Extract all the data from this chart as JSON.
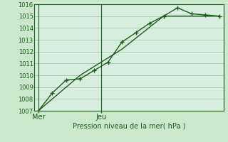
{
  "bg_color": "#cce8cc",
  "plot_bg_color": "#d8eede",
  "grid_color": "#b0c8b0",
  "line1_color": "#1a5c1a",
  "line2_color": "#1a5c1a",
  "title": "Pression niveau de la mer( hPa )",
  "xlabel_mer": "Mer",
  "xlabel_jeu": "Jeu",
  "ylim": [
    1007,
    1016
  ],
  "yticks": [
    1007,
    1008,
    1009,
    1010,
    1011,
    1012,
    1013,
    1014,
    1015,
    1016
  ],
  "line1_x": [
    0,
    1,
    2,
    3,
    4,
    5,
    6,
    7,
    8,
    9,
    10,
    11,
    12,
    13
  ],
  "line1_y": [
    1007.0,
    1008.5,
    1009.6,
    1009.7,
    1010.4,
    1011.1,
    1012.8,
    1013.6,
    1014.4,
    1015.0,
    1015.7,
    1015.2,
    1015.1,
    1015.0
  ],
  "line2_x": [
    0,
    3,
    6,
    9,
    13
  ],
  "line2_y": [
    1007.0,
    1010.0,
    1012.2,
    1015.0,
    1015.0
  ],
  "mer_x": 0,
  "jeu_x": 4.5,
  "xlim": [
    -0.3,
    13.3
  ]
}
